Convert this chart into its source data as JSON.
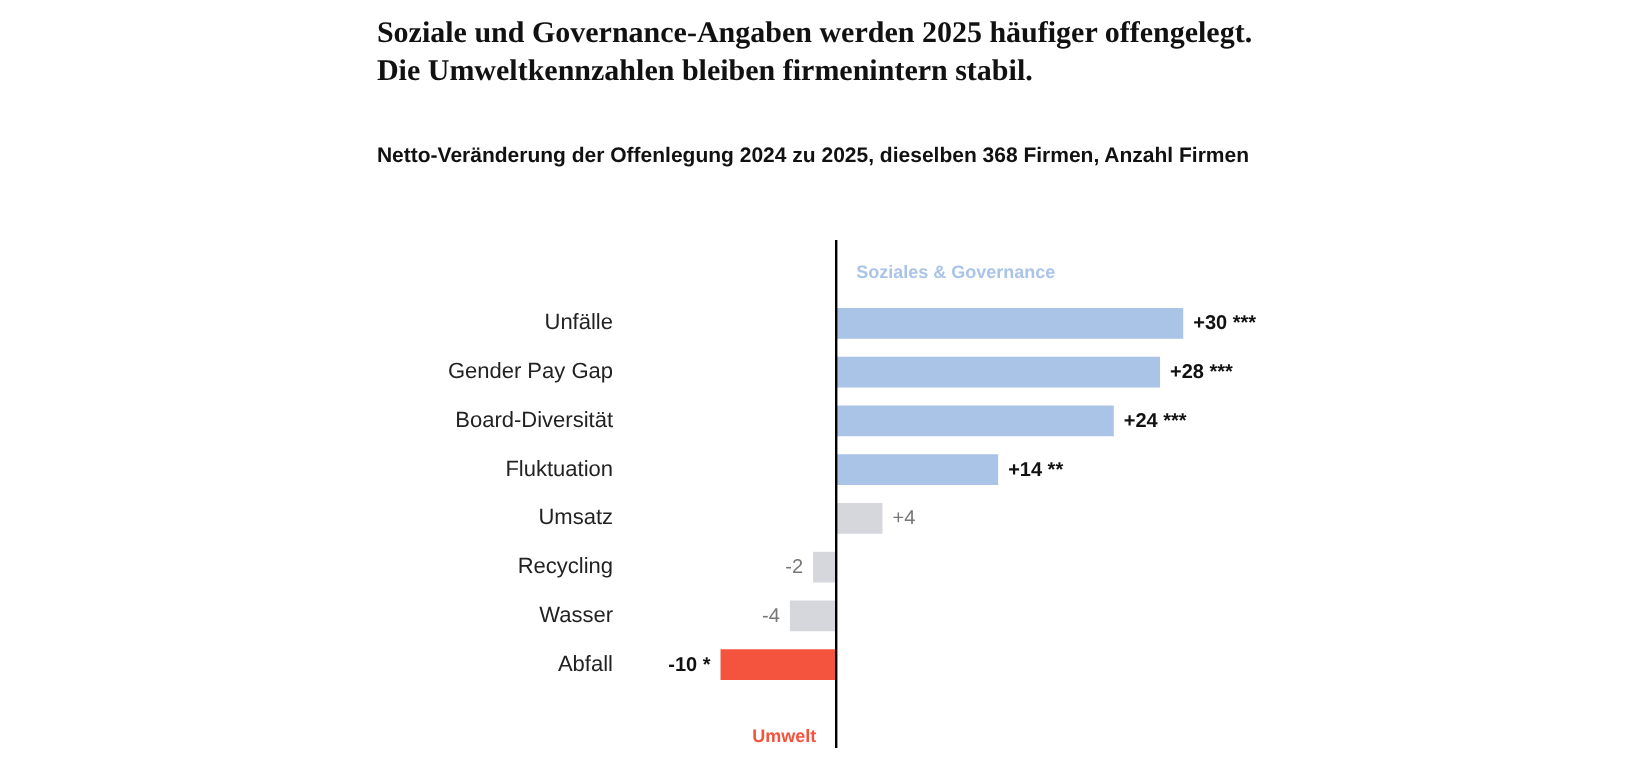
{
  "chart_data": {
    "type": "bar",
    "orientation": "horizontal",
    "title": "Soziale und Governance-Angaben werden 2025 häufiger offengelegt.\nDie Umweltkennzahlen bleiben firmenintern stabil.",
    "subtitle": "Netto-Veränderung der Offenlegung 2024 zu 2025, dieselben 368 Firmen, Anzahl Firmen",
    "categories": [
      "Unfälle",
      "Gender Pay Gap",
      "Board-Diversität",
      "Fluktuation",
      "Umsatz",
      "Recycling",
      "Wasser",
      "Abfall"
    ],
    "values": [
      30,
      28,
      24,
      14,
      4,
      -2,
      -4,
      -10
    ],
    "colors": [
      "#aac4e8",
      "#aac4e8",
      "#aac4e8",
      "#aac4e8",
      "#d5d7dc",
      "#d5d7dc",
      "#d5d7dc",
      "#f4533d"
    ],
    "value_labels": [
      "+30  ***",
      "+28  ***",
      "+24  ***",
      "+14  **",
      "+4",
      "-2",
      "-4",
      "-10  *"
    ],
    "annotations": [
      "Soziales & Governance",
      "Umwelt"
    ],
    "grid": false
  }
}
